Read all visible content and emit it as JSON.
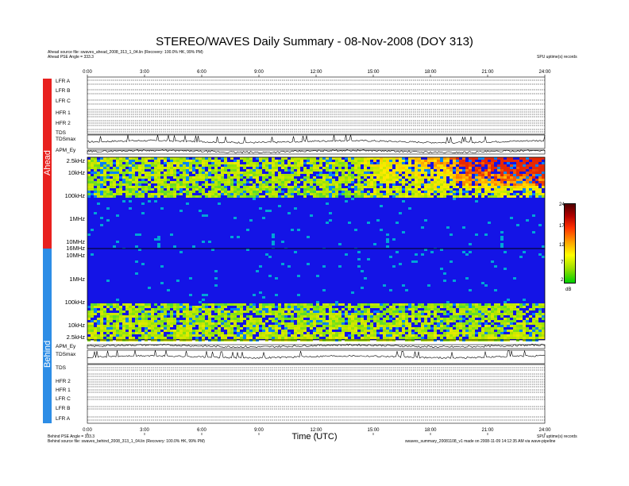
{
  "header": {
    "title": "STEREO/WAVES Daily Summary - 08-Nov-2008 (DOY 313)",
    "ahead_source": "Ahead source file: swaves_ahead_2008_313_1_04.lin (Recovery: 100.0% HK, 99% PM)",
    "ahead_angle": "Ahead PSE Angle = 333.3",
    "top_right_note": "SPU uptime(s) records"
  },
  "footer": {
    "behind_angle": "Behind PSE Angle = 333.3",
    "behind_source": "Behind source file: swaves_behind_2008_313_1_04.lin (Recovery: 100.0% HK, 99% PM)",
    "bottom_right_note_1": "SPU uptime(s) records",
    "bottom_right_note_2": "swaves_summary_20081108_v1 made on 2008-11-09 14:12:35 AM via wave-pipeline",
    "xlabel": "Time (UTC)"
  },
  "panels": {
    "ahead_label": "Ahead",
    "behind_label": "Behind"
  },
  "chart_data": {
    "type": "heatmap",
    "title": "STEREO/WAVES Daily Summary - 08-Nov-2008 (DOY 313)",
    "xlabel": "Time (UTC)",
    "x_ticks": [
      "0:00",
      "3:00",
      "6:00",
      "9:00",
      "12:00",
      "15:00",
      "18:00",
      "21:00",
      "24:00"
    ],
    "xlim_hours": [
      0,
      24
    ],
    "ahead_rows": [
      "LFR A",
      "LFR B",
      "LFR C",
      "HFR 1",
      "HFR 2",
      "TDS",
      "TDSmax",
      "APM_Ey"
    ],
    "behind_rows": [
      "APM_Ey",
      "TDSmax",
      "TDS",
      "HFR 2",
      "HFR 1",
      "LFR C",
      "LFR B",
      "LFR A"
    ],
    "ahead_freq_ticks": [
      "2.5kHz",
      "10kHz",
      "100kHz",
      "1MHz",
      "10MHz"
    ],
    "behind_freq_ticks": [
      "16MHz",
      "10MHz",
      "1MHz",
      "100kHz",
      "10kHz",
      "2.5kHz"
    ],
    "colorbar": {
      "label": "dB",
      "ticks": [
        24,
        17,
        12,
        7,
        2
      ],
      "range": [
        2,
        24
      ]
    },
    "tdsmax_ticks": [
      "10",
      "1"
    ]
  }
}
